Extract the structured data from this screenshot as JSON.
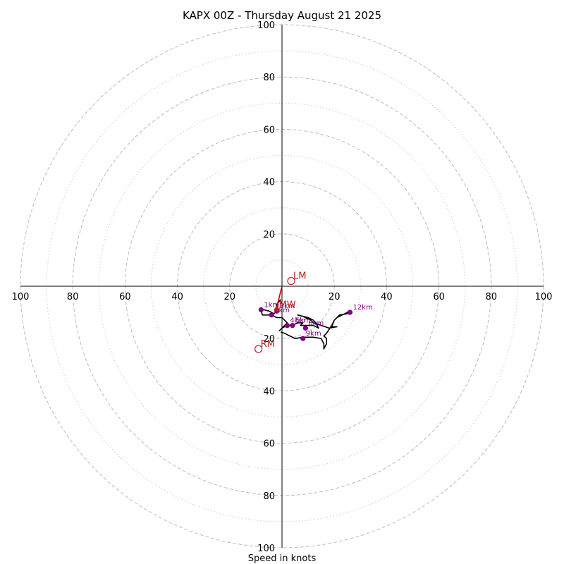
{
  "chart_data": {
    "type": "hodograph",
    "title": "KAPX 00Z - Thursday August 21 2025",
    "xlabel": "Speed in knots",
    "max_speed": 100,
    "axis_tick_labels": [
      "20",
      "40",
      "60",
      "80",
      "100"
    ],
    "ring_dashed": [
      20,
      40,
      60,
      80,
      100
    ],
    "ring_dotted": [
      10,
      30,
      50,
      70,
      90
    ],
    "colors": {
      "grid": "#bbbbbb",
      "grid_dotted": "#cccccc",
      "hodograph": "#000000",
      "height_marker": "#800080",
      "motion": "#b22222",
      "motion_line": "#cc0000"
    },
    "hodograph_trace": [
      [
        -0.5,
        -5
      ],
      [
        -2,
        -7
      ],
      [
        -1.5,
        -9
      ],
      [
        -2.5,
        -10
      ],
      [
        -3,
        -10.5
      ],
      [
        -5,
        -9.5
      ],
      [
        -7,
        -9
      ],
      [
        -8,
        -9
      ],
      [
        -7.5,
        -11
      ],
      [
        -6,
        -11
      ],
      [
        -4,
        -11
      ],
      [
        -2,
        -12
      ],
      [
        0,
        -12
      ],
      [
        1,
        -13
      ],
      [
        2,
        -14
      ],
      [
        1,
        -15
      ],
      [
        0,
        -16
      ],
      [
        -1,
        -17
      ],
      [
        0,
        -16
      ],
      [
        2,
        -15
      ],
      [
        4,
        -15
      ],
      [
        6,
        -14
      ],
      [
        8,
        -14
      ],
      [
        7,
        -15
      ],
      [
        9,
        -15
      ],
      [
        11,
        -15
      ],
      [
        12,
        -15
      ],
      [
        14,
        -16
      ],
      [
        13,
        -14
      ],
      [
        12,
        -13
      ],
      [
        10,
        -12
      ],
      [
        6,
        -11
      ],
      [
        8,
        -11.5
      ],
      [
        9,
        -12
      ],
      [
        11,
        -13
      ],
      [
        12,
        -14
      ],
      [
        15,
        -15
      ],
      [
        18,
        -16
      ],
      [
        21,
        -15.5
      ],
      [
        19,
        -15.5
      ],
      [
        20,
        -13
      ],
      [
        21,
        -12
      ],
      [
        23,
        -11
      ],
      [
        25,
        -10
      ],
      [
        25.5,
        -9.5
      ],
      [
        26,
        -10
      ],
      [
        25,
        -10.5
      ],
      [
        22,
        -11
      ],
      [
        20,
        -13
      ],
      [
        19,
        -15
      ],
      [
        17,
        -18
      ],
      [
        16,
        -19
      ],
      [
        17,
        -20
      ],
      [
        17,
        -22
      ],
      [
        16.5,
        -23
      ],
      [
        16,
        -24
      ],
      [
        16,
        -22
      ],
      [
        15,
        -20
      ],
      [
        12,
        -19.5
      ],
      [
        10,
        -19.5
      ],
      [
        8,
        -19.5
      ],
      [
        5,
        -20
      ],
      [
        3,
        -19
      ],
      [
        1,
        -18
      ],
      [
        -0.5,
        -17.5
      ]
    ],
    "height_markers": [
      {
        "label": "1km",
        "u": -8,
        "v": -9
      },
      {
        "label": "2km",
        "u": -4,
        "v": -11
      },
      {
        "label": "3km",
        "u": -2,
        "v": -9.5
      },
      {
        "label": "4km",
        "u": 2,
        "v": -15
      },
      {
        "label": "5km",
        "u": 4,
        "v": -15
      },
      {
        "label": "6km",
        "u": 9,
        "v": -16
      },
      {
        "label": "9km",
        "u": 8,
        "v": -20
      },
      {
        "label": "12km",
        "u": 26,
        "v": -10
      }
    ],
    "storm_motion": [
      {
        "label": "LM",
        "u": 3.5,
        "v": 2
      },
      {
        "label": "MW",
        "u": -2,
        "v": -9
      },
      {
        "label": "RM",
        "u": -9,
        "v": -24
      }
    ],
    "motion_line": [
      [
        0,
        0
      ],
      [
        -2,
        -8
      ]
    ]
  }
}
